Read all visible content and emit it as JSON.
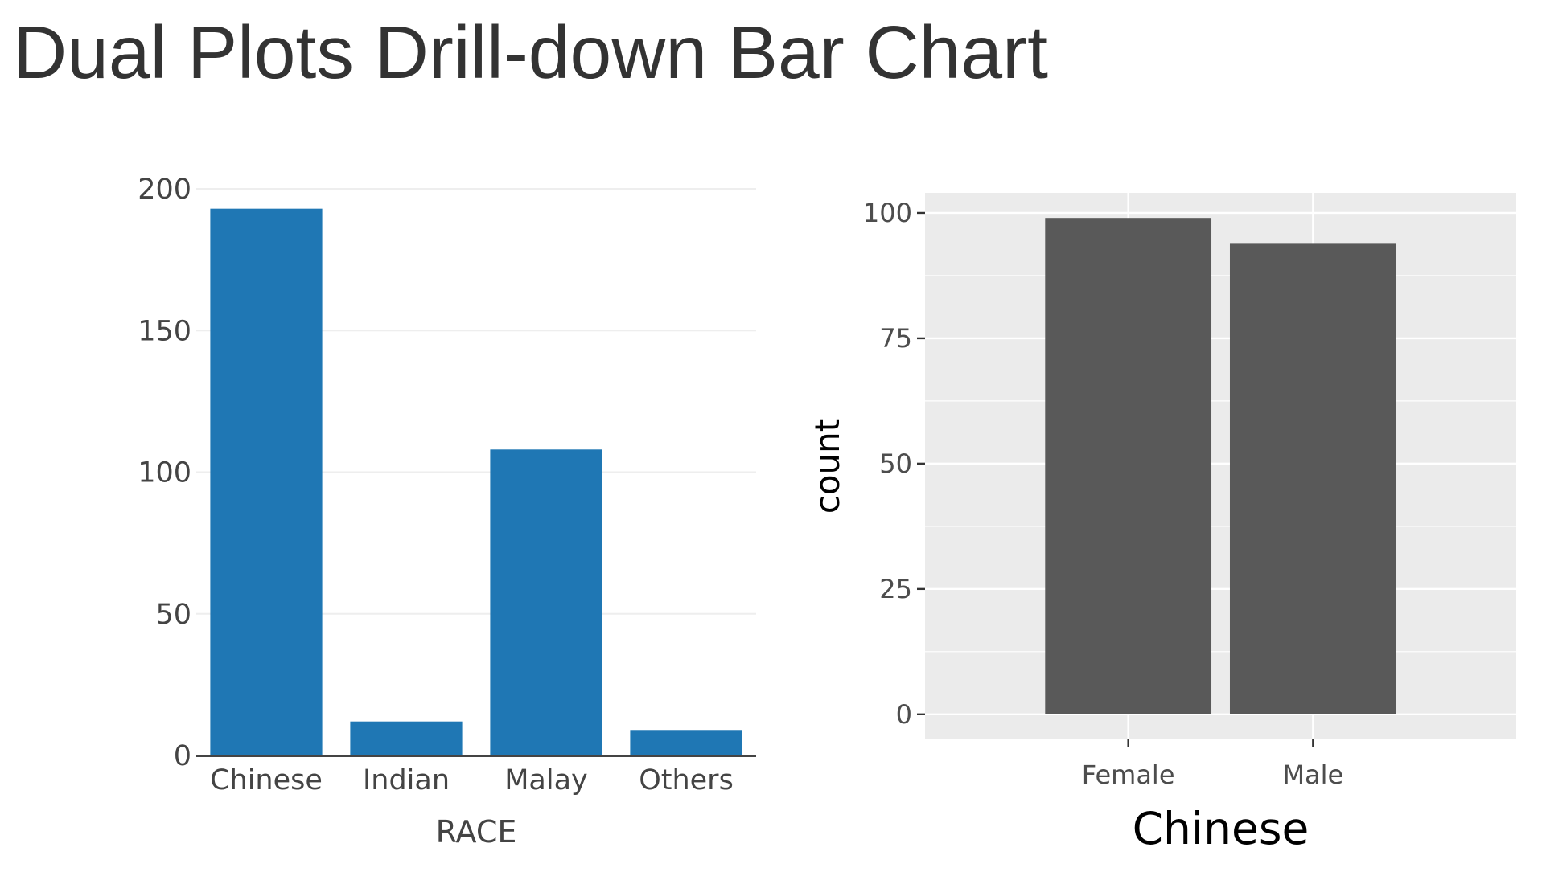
{
  "page": {
    "title": "Dual Plots Drill-down Bar Chart"
  },
  "chart_data": [
    {
      "type": "bar",
      "style": "plotly",
      "title": "",
      "categories": [
        "Chinese",
        "Indian",
        "Malay",
        "Others"
      ],
      "values": [
        193,
        12,
        108,
        9
      ],
      "xlabel": "RACE",
      "ylabel": "",
      "ylim": [
        0,
        200
      ],
      "yticks": [
        0,
        50,
        100,
        150,
        200
      ],
      "grid": true,
      "bar_color": "#1f77b4"
    },
    {
      "type": "bar",
      "style": "ggplot",
      "title": "",
      "categories": [
        "Female",
        "Male"
      ],
      "values": [
        99,
        94
      ],
      "xlabel": "Chinese",
      "ylabel": "count",
      "ylim": [
        -5,
        104
      ],
      "yticks": [
        0,
        25,
        50,
        75,
        100
      ],
      "grid": true,
      "bar_color": "#595959",
      "panel_color": "#ebebeb"
    }
  ]
}
